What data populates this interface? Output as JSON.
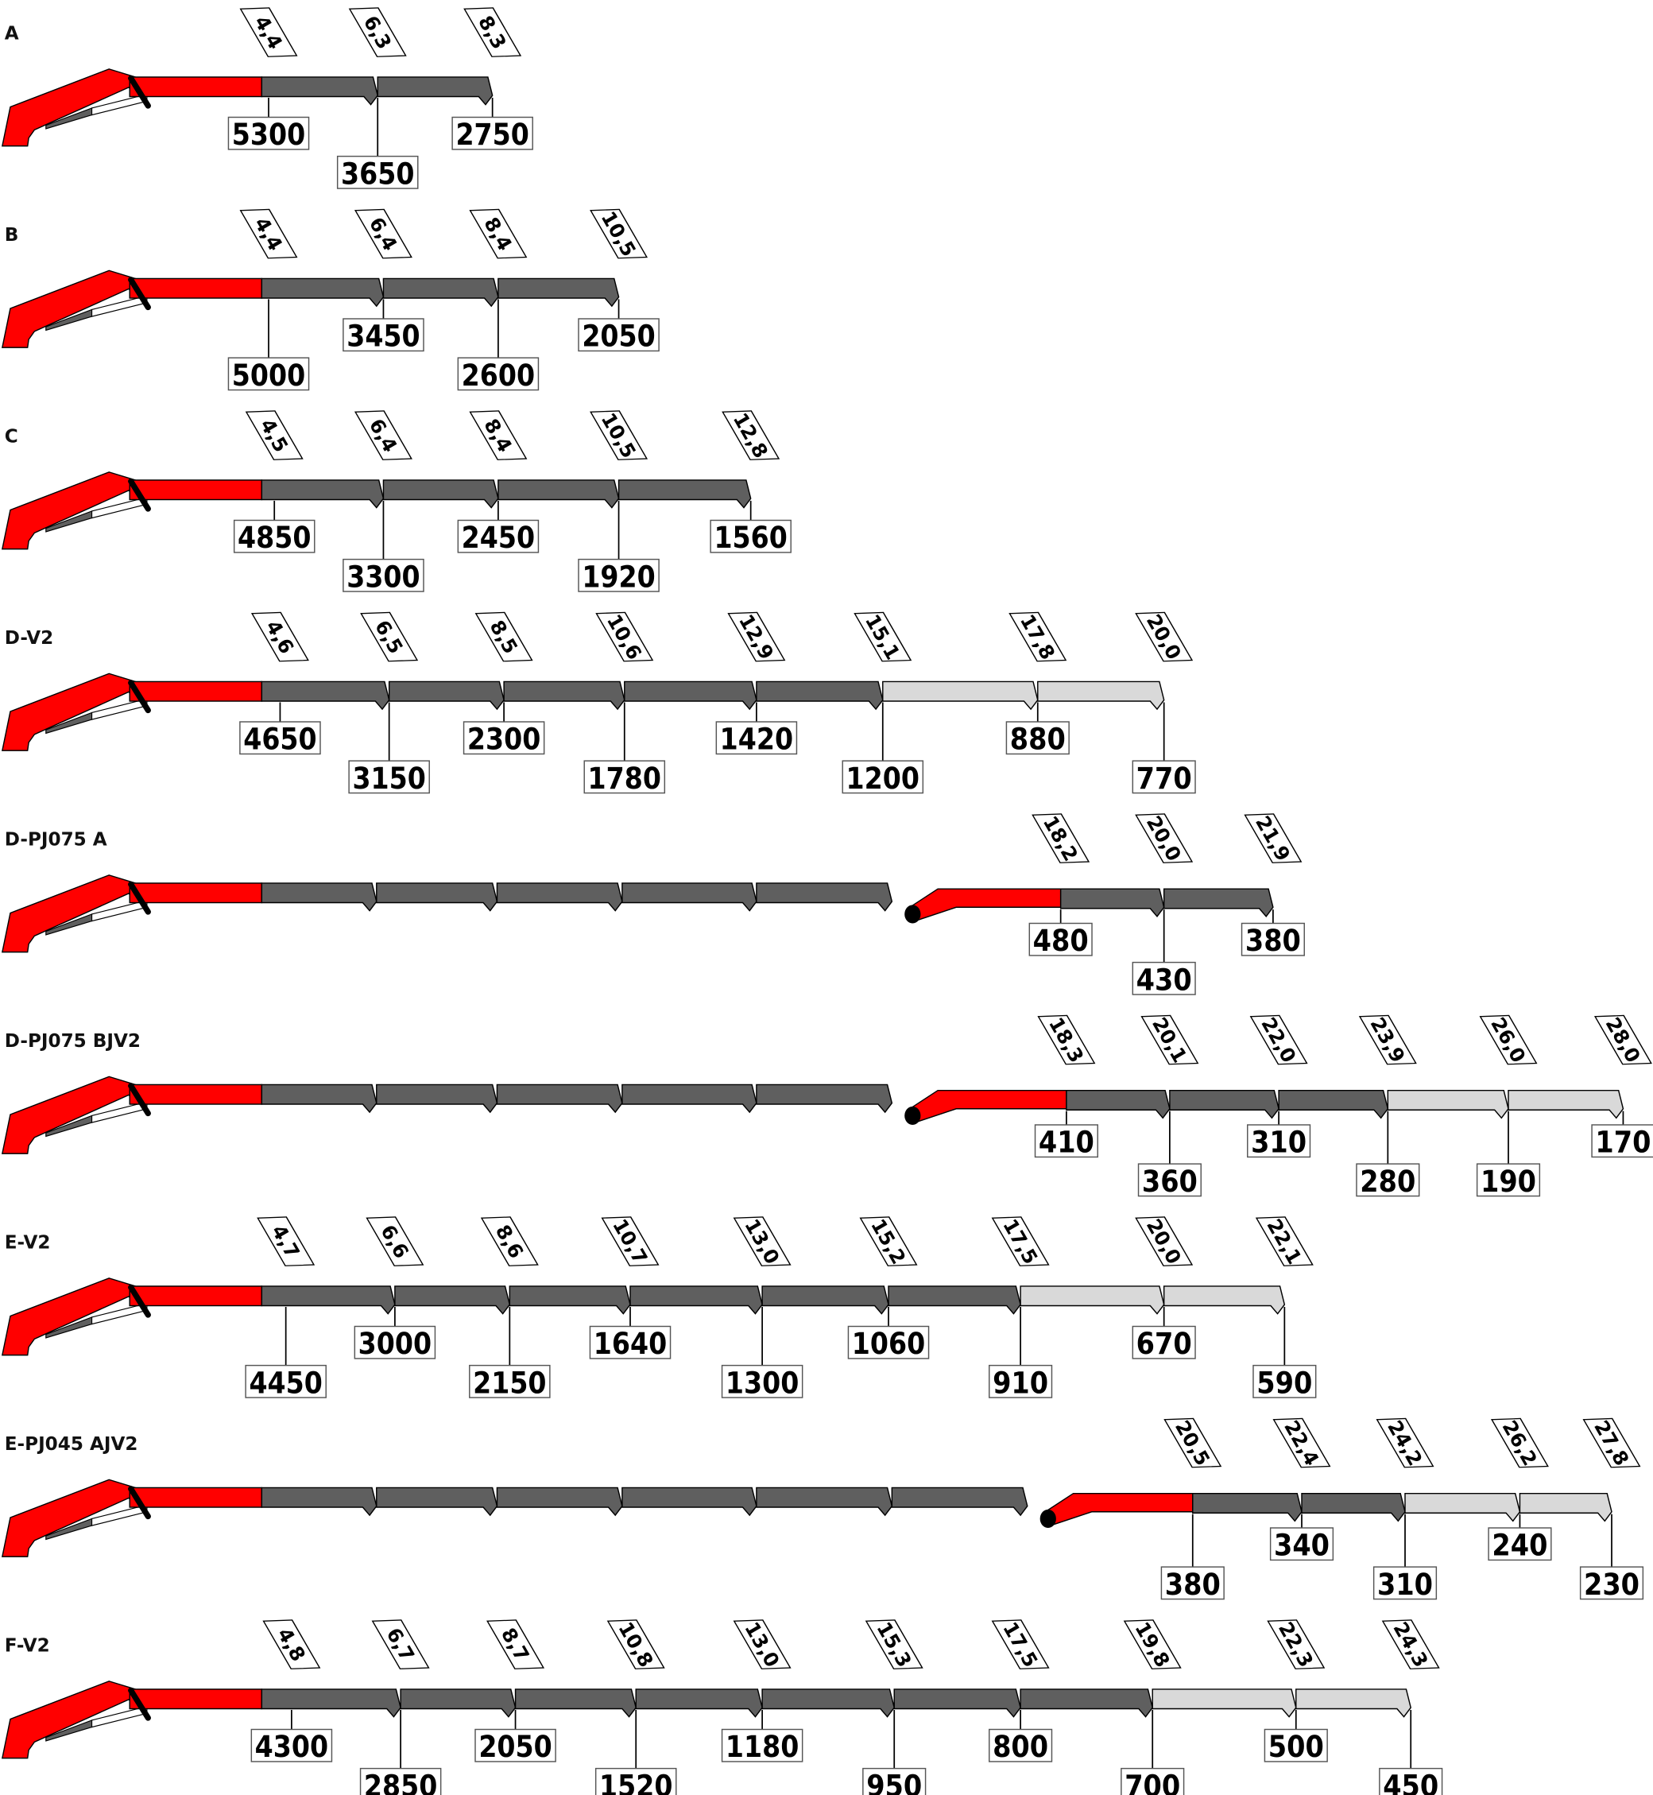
{
  "colors": {
    "base": "#ff0000",
    "hydraulic_extension": "#5f5f5f",
    "manual_extension": "#d9d9d9",
    "outline": "#000000"
  },
  "rows": [
    {
      "label": "A",
      "points": [
        {
          "outreach": "4,4",
          "load": "5300",
          "section": "hydraulic"
        },
        {
          "outreach": "6,3",
          "load": "3650",
          "section": "hydraulic"
        },
        {
          "outreach": "8,3",
          "load": "2750",
          "section": "hydraulic"
        }
      ]
    },
    {
      "label": "B",
      "points": [
        {
          "outreach": "4,4",
          "load": "5000",
          "section": "hydraulic"
        },
        {
          "outreach": "6,4",
          "load": "3450",
          "section": "hydraulic"
        },
        {
          "outreach": "8,4",
          "load": "2600",
          "section": "hydraulic"
        },
        {
          "outreach": "10,5",
          "load": "2050",
          "section": "hydraulic"
        }
      ]
    },
    {
      "label": "C",
      "points": [
        {
          "outreach": "4,5",
          "load": "4850",
          "section": "hydraulic"
        },
        {
          "outreach": "6,4",
          "load": "3300",
          "section": "hydraulic"
        },
        {
          "outreach": "8,4",
          "load": "2450",
          "section": "hydraulic"
        },
        {
          "outreach": "10,5",
          "load": "1920",
          "section": "hydraulic"
        },
        {
          "outreach": "12,8",
          "load": "1560",
          "section": "hydraulic"
        }
      ]
    },
    {
      "label": "D-V2",
      "points": [
        {
          "outreach": "4,6",
          "load": "4650",
          "section": "hydraulic"
        },
        {
          "outreach": "6,5",
          "load": "3150",
          "section": "hydraulic"
        },
        {
          "outreach": "8,5",
          "load": "2300",
          "section": "hydraulic"
        },
        {
          "outreach": "10,6",
          "load": "1780",
          "section": "hydraulic"
        },
        {
          "outreach": "12,9",
          "load": "1420",
          "section": "hydraulic"
        },
        {
          "outreach": "15,1",
          "load": "1200",
          "section": "hydraulic"
        },
        {
          "outreach": "17,8",
          "load": "880",
          "section": "manual"
        },
        {
          "outreach": "20,0",
          "load": "770",
          "section": "manual"
        }
      ]
    },
    {
      "label": "D-PJ075 A",
      "jib": true,
      "main_sections": 6,
      "points": [
        {
          "outreach": "18,2",
          "load": "480",
          "section": "hydraulic"
        },
        {
          "outreach": "20,0",
          "load": "430",
          "section": "hydraulic"
        },
        {
          "outreach": "21,9",
          "load": "380",
          "section": "hydraulic"
        }
      ]
    },
    {
      "label": "D-PJ075 BJV2",
      "jib": true,
      "main_sections": 6,
      "points": [
        {
          "outreach": "18,3",
          "load": "410",
          "section": "hydraulic"
        },
        {
          "outreach": "20,1",
          "load": "360",
          "section": "hydraulic"
        },
        {
          "outreach": "22,0",
          "load": "310",
          "section": "hydraulic"
        },
        {
          "outreach": "23,9",
          "load": "280",
          "section": "hydraulic"
        },
        {
          "outreach": "26,0",
          "load": "190",
          "section": "manual"
        },
        {
          "outreach": "28,0",
          "load": "170",
          "section": "manual"
        }
      ]
    },
    {
      "label": "E-V2",
      "points": [
        {
          "outreach": "4,7",
          "load": "4450",
          "section": "hydraulic"
        },
        {
          "outreach": "6,6",
          "load": "3000",
          "section": "hydraulic"
        },
        {
          "outreach": "8,6",
          "load": "2150",
          "section": "hydraulic"
        },
        {
          "outreach": "10,7",
          "load": "1640",
          "section": "hydraulic"
        },
        {
          "outreach": "13,0",
          "load": "1300",
          "section": "hydraulic"
        },
        {
          "outreach": "15,2",
          "load": "1060",
          "section": "hydraulic"
        },
        {
          "outreach": "17,5",
          "load": "910",
          "section": "hydraulic"
        },
        {
          "outreach": "20,0",
          "load": "670",
          "section": "manual"
        },
        {
          "outreach": "22,1",
          "load": "590",
          "section": "manual"
        }
      ]
    },
    {
      "label": "E-PJ045 AJV2",
      "jib": true,
      "main_sections": 7,
      "points": [
        {
          "outreach": "20,5",
          "load": "380",
          "section": "hydraulic"
        },
        {
          "outreach": "22,4",
          "load": "340",
          "section": "hydraulic"
        },
        {
          "outreach": "24,2",
          "load": "310",
          "section": "hydraulic"
        },
        {
          "outreach": "26,2",
          "load": "240",
          "section": "manual"
        },
        {
          "outreach": "27,8",
          "load": "230",
          "section": "manual"
        }
      ]
    },
    {
      "label": "F-V2",
      "points": [
        {
          "outreach": "4,8",
          "load": "4300",
          "section": "hydraulic"
        },
        {
          "outreach": "6,7",
          "load": "2850",
          "section": "hydraulic"
        },
        {
          "outreach": "8,7",
          "load": "2050",
          "section": "hydraulic"
        },
        {
          "outreach": "10,8",
          "load": "1520",
          "section": "hydraulic"
        },
        {
          "outreach": "13,0",
          "load": "1180",
          "section": "hydraulic"
        },
        {
          "outreach": "15,3",
          "load": "950",
          "section": "hydraulic"
        },
        {
          "outreach": "17,5",
          "load": "800",
          "section": "hydraulic"
        },
        {
          "outreach": "19,8",
          "load": "700",
          "section": "hydraulic"
        },
        {
          "outreach": "22,3",
          "load": "500",
          "section": "manual"
        },
        {
          "outreach": "24,3",
          "load": "450",
          "section": "manual"
        }
      ]
    }
  ]
}
